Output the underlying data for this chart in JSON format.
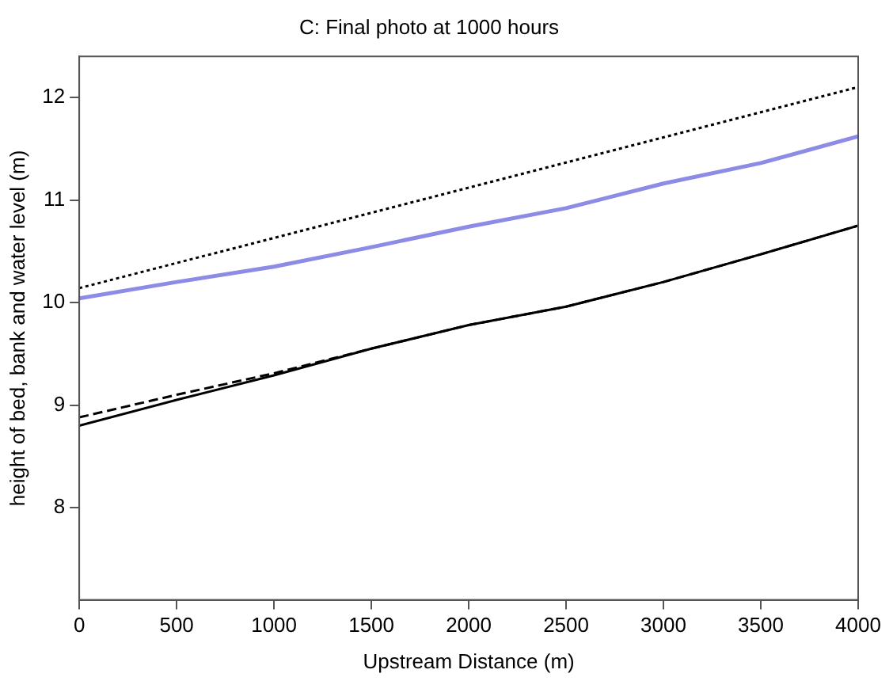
{
  "chart_data": {
    "type": "line",
    "title": "C: Final photo at 1000 hours",
    "xlabel": "Upstream Distance (m)",
    "ylabel": "height of bed, bank and water level (m)",
    "xlim": [
      0,
      4000
    ],
    "xticks": [
      0,
      500,
      1000,
      1500,
      2000,
      2500,
      3000,
      3500,
      4000
    ],
    "ylim": [
      7.1,
      12.4
    ],
    "yticks": [
      8,
      9,
      10,
      11,
      12
    ],
    "grid": false,
    "legend": false,
    "marker": "none",
    "series": [
      {
        "color": "#000000",
        "line_style": "dotted",
        "x": [
          0,
          4000
        ],
        "values": [
          10.14,
          12.1
        ]
      },
      {
        "color": "#8c8ce6",
        "line_style": "solid",
        "x": [
          0,
          500,
          1000,
          1500,
          2000,
          2500,
          3000,
          3500,
          4000
        ],
        "values": [
          10.04,
          10.2,
          10.35,
          10.54,
          10.74,
          10.92,
          11.16,
          11.36,
          11.62
        ]
      },
      {
        "color": "#000000",
        "line_style": "dashed",
        "x": [
          0,
          500,
          1000,
          1500,
          2000,
          2500,
          3000,
          3500,
          4000
        ],
        "values": [
          8.88,
          9.1,
          9.31,
          9.55,
          9.78,
          9.96,
          10.2,
          10.47,
          10.75
        ]
      },
      {
        "color": "#000000",
        "line_style": "solid",
        "x": [
          0,
          500,
          1000,
          1500,
          2000,
          2500,
          3000,
          3500,
          4000
        ],
        "values": [
          8.8,
          9.05,
          9.29,
          9.55,
          9.78,
          9.96,
          10.2,
          10.47,
          10.75
        ]
      }
    ]
  }
}
